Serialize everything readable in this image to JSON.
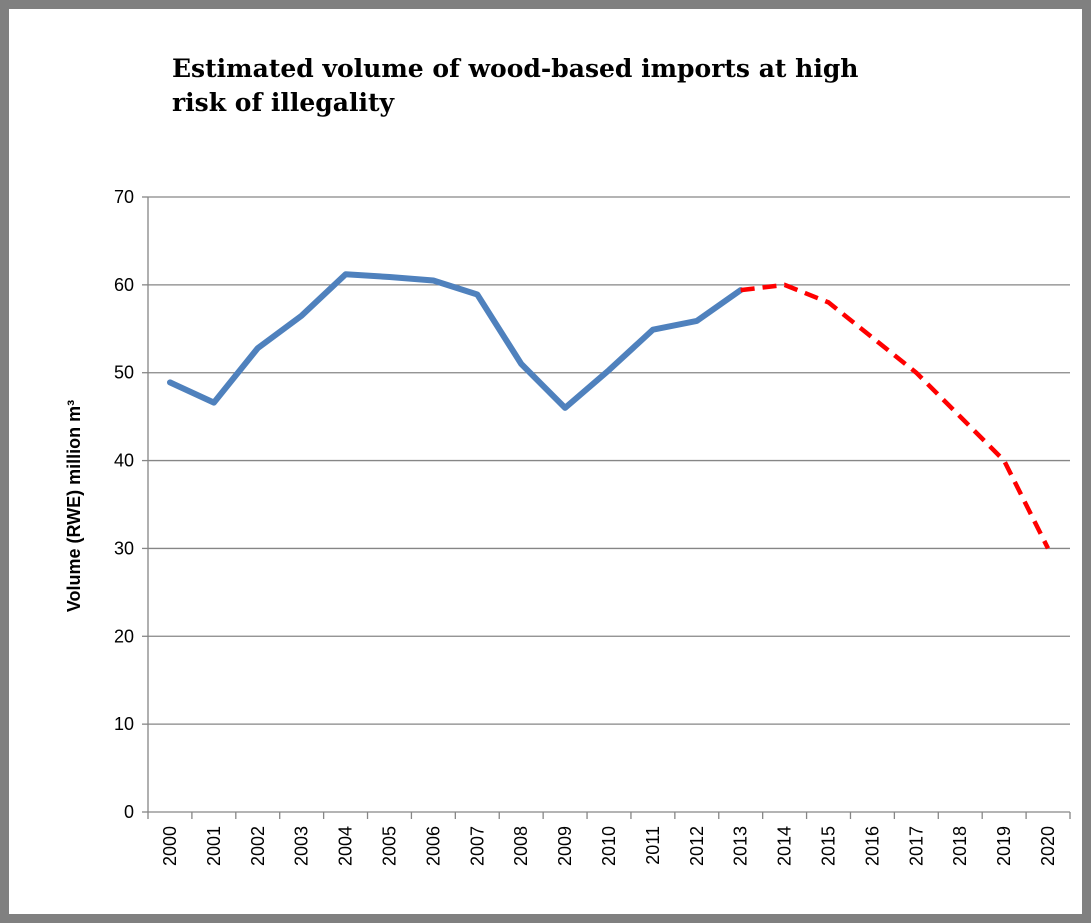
{
  "chart_data": {
    "type": "line",
    "title": "Estimated volume of wood-based imports at high risk of illegality",
    "xlabel": "",
    "ylabel": "Volume (RWE) million m³",
    "ylim": [
      0,
      70
    ],
    "yticks": [
      0,
      10,
      20,
      30,
      40,
      50,
      60,
      70
    ],
    "grid": true,
    "categories": [
      "2000",
      "2001",
      "2002",
      "2003",
      "2004",
      "2005",
      "2006",
      "2007",
      "2008",
      "2009",
      "2010",
      "2011",
      "2012",
      "2013",
      "2014",
      "2015",
      "2016",
      "2017",
      "2018",
      "2019",
      "2020"
    ],
    "series": [
      {
        "style": "solid",
        "color": "#4F81BD",
        "values": [
          48.9,
          46.6,
          52.8,
          56.5,
          61.2,
          60.9,
          60.5,
          58.9,
          51.0,
          46.0,
          50.3,
          54.9,
          55.9,
          59.4,
          null,
          null,
          null,
          null,
          null,
          null,
          null
        ]
      },
      {
        "style": "dashed",
        "color": "#FF0000",
        "values": [
          null,
          null,
          null,
          null,
          null,
          null,
          null,
          null,
          null,
          null,
          null,
          null,
          null,
          59.4,
          60.0,
          58.0,
          54.0,
          50.0,
          45.0,
          40.0,
          30.0
        ]
      }
    ]
  }
}
